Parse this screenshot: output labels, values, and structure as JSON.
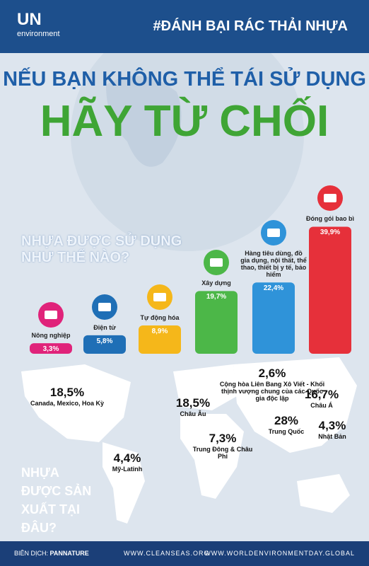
{
  "header": {
    "logo": "UN",
    "logo_sub": "environment",
    "hashtag": "#ĐÁNH BẠI RÁC THẢI NHỰA"
  },
  "headline": {
    "line1": "NẾU BẠN KHÔNG THỂ TÁI SỬ DỤNG",
    "line2": "HÃY TỪ CHỐI"
  },
  "chart_data": {
    "type": "bar",
    "title": "NHỰA ĐƯỢC SỬ DỤNG NHƯ THẾ NÀO?",
    "categories": [
      "Nông nghiệp",
      "Điện tử",
      "Tự động hóa",
      "Xây dựng",
      "Hàng tiêu dùng, đồ gia dụng, nội thất, thể thao, thiết bị y tế, bảo hiểm",
      "Đóng gói bao bì"
    ],
    "values": [
      3.3,
      5.8,
      8.9,
      19.7,
      22.4,
      39.9
    ],
    "value_labels": [
      "3,3%",
      "5,8%",
      "8,9%",
      "19,7%",
      "22,4%",
      "39,9%"
    ],
    "colors": [
      "#e0237a",
      "#1f6fb6",
      "#f5b71a",
      "#4cb748",
      "#2f93d9",
      "#e6303a"
    ],
    "ylim": [
      0,
      40
    ]
  },
  "production": {
    "title": "NHỰA ĐƯỢC SẢN XUẤT TẠI ĐÂU?",
    "regions": [
      {
        "value": "18,5%",
        "label": "Canada, Mexico, Hoa Kỳ"
      },
      {
        "value": "4,4%",
        "label": "Mỹ-Latinh"
      },
      {
        "value": "18,5%",
        "label": "Châu Âu"
      },
      {
        "value": "2,6%",
        "label": "Cộng hòa Liên Bang Xô Viết - Khối thịnh vượng chung của các Quốc gia độc lập"
      },
      {
        "value": "16,7%",
        "label": "Châu Á"
      },
      {
        "value": "28%",
        "label": "Trung Quốc"
      },
      {
        "value": "4,3%",
        "label": "Nhật Bản"
      },
      {
        "value": "7,3%",
        "label": "Trung Đông & Châu Phi"
      }
    ]
  },
  "footer": {
    "translator_label": "BIÊN DỊCH:",
    "translator": "PANNATURE",
    "site1": "WWW.CLEANSEAS.ORG",
    "site2": "WWW.WORLDENVIRONMENTDAY.GLOBAL"
  }
}
